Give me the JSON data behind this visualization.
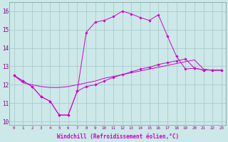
{
  "xlabel": "Windchill (Refroidissement éolien,°C)",
  "x": [
    0,
    1,
    2,
    3,
    4,
    5,
    6,
    7,
    8,
    9,
    10,
    11,
    12,
    13,
    14,
    15,
    16,
    17,
    18,
    19,
    20,
    21,
    22,
    23
  ],
  "line_upper": [
    12.5,
    12.2,
    11.9,
    11.35,
    11.1,
    10.35,
    10.35,
    11.65,
    14.85,
    15.4,
    15.5,
    15.7,
    16.0,
    15.85,
    15.65,
    15.5,
    15.8,
    14.65,
    13.55,
    12.85,
    12.9,
    12.8,
    12.8,
    12.8
  ],
  "line_lower": [
    12.5,
    12.2,
    11.9,
    11.35,
    11.1,
    10.35,
    10.35,
    11.65,
    11.9,
    12.0,
    12.2,
    12.4,
    12.55,
    12.7,
    12.85,
    12.95,
    13.1,
    13.2,
    13.3,
    13.4,
    12.9,
    12.8,
    12.8,
    12.8
  ],
  "line_mid": [
    12.5,
    12.1,
    12.0,
    11.9,
    11.85,
    11.85,
    11.9,
    12.0,
    12.1,
    12.2,
    12.35,
    12.45,
    12.55,
    12.65,
    12.75,
    12.85,
    12.95,
    13.05,
    13.15,
    13.25,
    13.35,
    12.85,
    12.78,
    12.78
  ],
  "bg_color": "#cce8e8",
  "grid_color": "#aacccc",
  "line_color": "#cc00cc",
  "ylim": [
    9.8,
    16.5
  ],
  "yticks": [
    10,
    11,
    12,
    13,
    14,
    15,
    16
  ]
}
